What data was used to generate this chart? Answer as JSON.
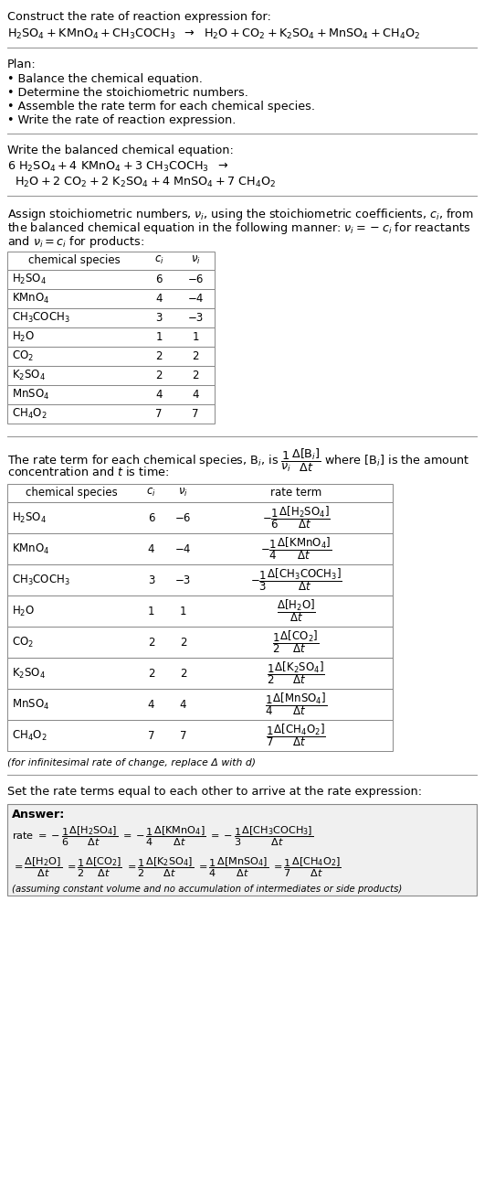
{
  "bg_color": "#ffffff",
  "title_text": "Construct the rate of reaction expression for:",
  "plan_header": "Plan:",
  "plan_items": [
    "• Balance the chemical equation.",
    "• Determine the stoichiometric numbers.",
    "• Assemble the rate term for each chemical species.",
    "• Write the rate of reaction expression."
  ],
  "balanced_header": "Write the balanced chemical equation:",
  "stoich_intro": "Assign stoichiometric numbers, ",
  "table1_rows": [
    [
      "H₂SO₄",
      "6",
      "−6"
    ],
    [
      "KMnO₄",
      "4",
      "−4"
    ],
    [
      "CH₃COCH₃",
      "3",
      "−3"
    ],
    [
      "H₂O",
      "1",
      "1"
    ],
    [
      "CO₂",
      "2",
      "2"
    ],
    [
      "K₂SO₄",
      "2",
      "2"
    ],
    [
      "MnSO₄",
      "4",
      "4"
    ],
    [
      "CH₄O₂",
      "7",
      "7"
    ]
  ],
  "table2_rows": [
    [
      "H₂SO₄",
      "6",
      "−6"
    ],
    [
      "KMnO₄",
      "4",
      "−4"
    ],
    [
      "CH₃COCH₃",
      "3",
      "−3"
    ],
    [
      "H₂O",
      "1",
      "1"
    ],
    [
      "CO₂",
      "2",
      "2"
    ],
    [
      "K₂SO₄",
      "2",
      "2"
    ],
    [
      "MnSO₄",
      "4",
      "4"
    ],
    [
      "CH₄O₂",
      "7",
      "7"
    ]
  ],
  "infinitesimal_note": "(for infinitesimal rate of change, replace Δ with d)",
  "set_equal_header": "Set the rate terms equal to each other to arrive at the rate expression:",
  "answer_label": "Answer:",
  "answer_note": "(assuming constant volume and no accumulation of intermediates or side products)"
}
